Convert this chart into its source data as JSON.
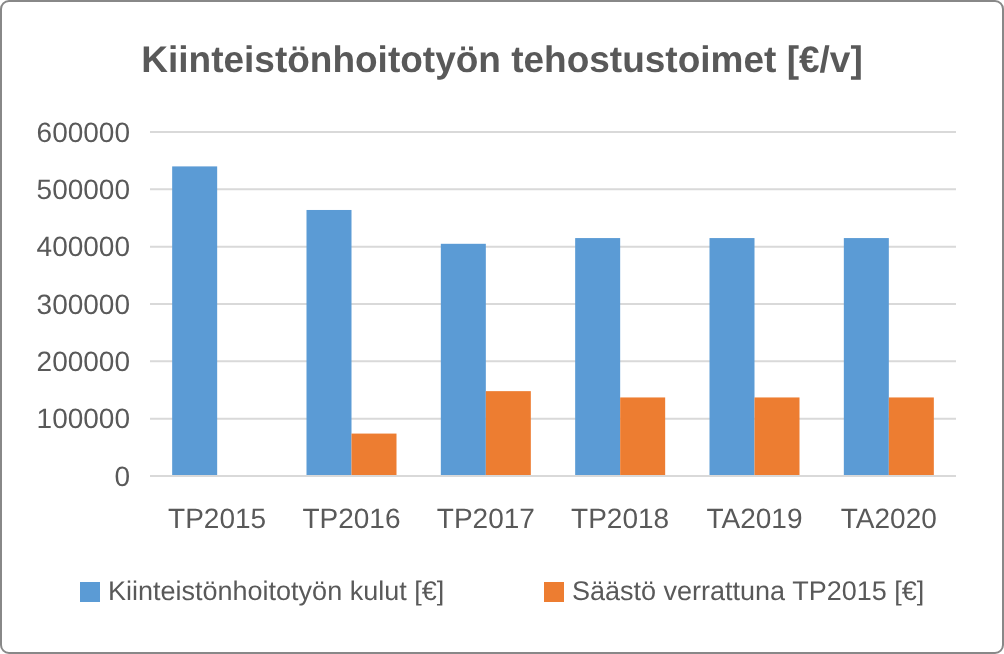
{
  "chart_data": {
    "type": "bar",
    "title": "Kiinteistönhoitotyön tehostustoimet [€/v]",
    "categories": [
      "TP2015",
      "TP2016",
      "TP2017",
      "TP2018",
      "TA2019",
      "TA2020"
    ],
    "series": [
      {
        "name": "Kiinteistönhoitotyön kulut [€]",
        "color": "#5b9bd5",
        "values": [
          540000,
          464000,
          405000,
          415000,
          415000,
          415000
        ]
      },
      {
        "name": "Säästö verrattuna TP2015 [€]",
        "color": "#ed7d31",
        "values": [
          0,
          74000,
          148000,
          137000,
          137000,
          137000
        ]
      }
    ],
    "ylim": [
      0,
      600000
    ],
    "yticks": [
      0,
      100000,
      200000,
      300000,
      400000,
      500000,
      600000
    ],
    "grid": "y",
    "legend": "bottom"
  }
}
